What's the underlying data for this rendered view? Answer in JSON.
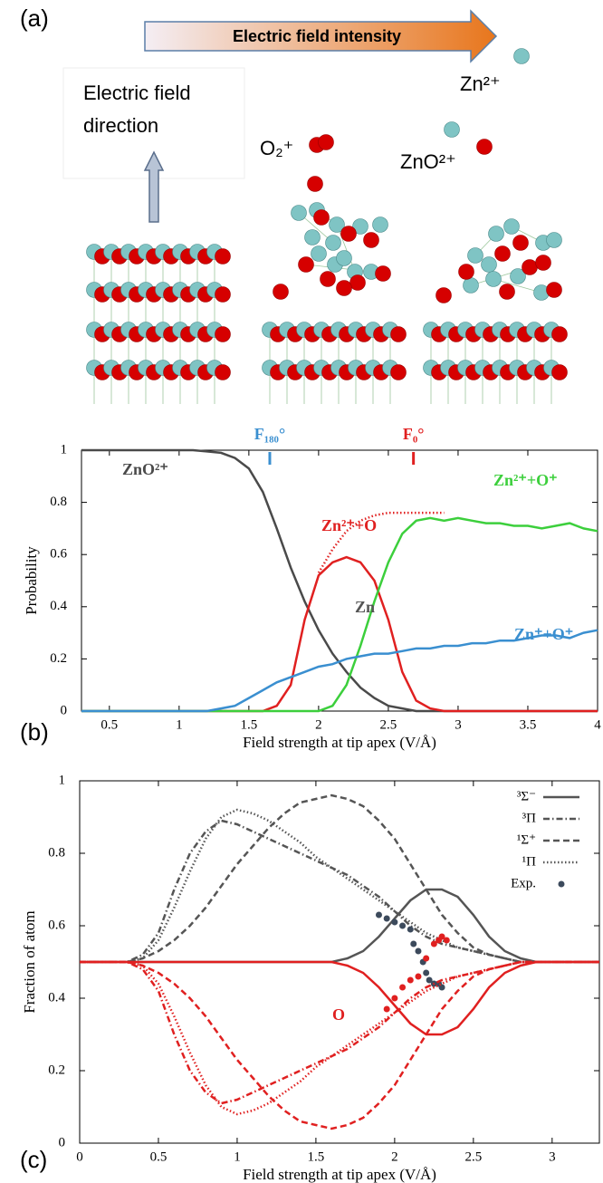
{
  "panel_labels": [
    "(a)",
    "(b)",
    "(c)"
  ],
  "illustration": {
    "arrow_label": "Electric field intensity",
    "direction_label": [
      "Electric field",
      "direction"
    ],
    "ion_labels": [
      "O₂⁺",
      "ZnO²⁺",
      "Zn²⁺"
    ]
  },
  "chart_data": [
    {
      "type": "line",
      "ylabel": "Probability",
      "xlabel": "Field strength at tip apex (V/Å)",
      "xlim": [
        0.3,
        4
      ],
      "xticks": [
        0.5,
        1,
        1.5,
        2,
        2.5,
        3,
        3.5,
        4
      ],
      "ylim": [
        0,
        1
      ],
      "yticks": [
        0,
        0.2,
        0.4,
        0.6,
        0.8,
        1
      ],
      "markers": [
        {
          "label": "F₁₈₀°",
          "x": 1.65,
          "color": "#3a8fd0"
        },
        {
          "label": "F₀°",
          "x": 2.68,
          "color": "#e02020"
        }
      ],
      "x": [
        0.3,
        0.4,
        0.5,
        0.6,
        0.7,
        0.8,
        0.9,
        1,
        1.1,
        1.2,
        1.3,
        1.4,
        1.5,
        1.6,
        1.7,
        1.8,
        1.9,
        2,
        2.1,
        2.2,
        2.3,
        2.4,
        2.5,
        2.6,
        2.7,
        2.8,
        2.9,
        3,
        3.1,
        3.2,
        3.3,
        3.4,
        3.5,
        3.6,
        3.7,
        3.8,
        3.9,
        4
      ],
      "series": [
        {
          "name": "ZnO²⁺",
          "color": "#4a4a4a",
          "dash": "solid",
          "values": [
            1,
            1,
            1,
            1,
            1,
            1,
            1,
            1,
            1,
            0.995,
            0.99,
            0.97,
            0.93,
            0.84,
            0.7,
            0.55,
            0.42,
            0.31,
            0.22,
            0.15,
            0.09,
            0.05,
            0.02,
            0.01,
            0,
            0,
            0,
            0,
            0,
            0,
            0,
            0,
            0,
            0,
            0,
            0,
            0,
            0
          ]
        },
        {
          "name": "Zn²⁺+O",
          "color": "#e02020",
          "dash": "solid",
          "values": [
            0,
            0,
            0,
            0,
            0,
            0,
            0,
            0,
            0,
            0,
            0,
            0,
            0,
            0,
            0.02,
            0.1,
            0.35,
            0.52,
            0.57,
            0.59,
            0.57,
            0.5,
            0.35,
            0.15,
            0.04,
            0.01,
            0,
            0,
            0,
            0,
            0,
            0,
            0,
            0,
            0,
            0,
            0,
            0
          ]
        },
        {
          "color": "#e02020",
          "dash": "dotted",
          "values": [
            null,
            null,
            null,
            null,
            null,
            null,
            null,
            null,
            null,
            null,
            null,
            null,
            null,
            null,
            null,
            null,
            null,
            0.53,
            0.62,
            0.69,
            0.73,
            0.75,
            0.76,
            0.76,
            0.76,
            0.76,
            0.76,
            null,
            null,
            null,
            null,
            null,
            null,
            null,
            null,
            null,
            null,
            null
          ]
        },
        {
          "name": "Zn²⁺+O⁺",
          "color": "#3ccf3c",
          "dash": "solid",
          "values": [
            0,
            0,
            0,
            0,
            0,
            0,
            0,
            0,
            0,
            0,
            0,
            0,
            0,
            0,
            0,
            0,
            0,
            0,
            0.02,
            0.1,
            0.25,
            0.42,
            0.57,
            0.68,
            0.73,
            0.74,
            0.73,
            0.74,
            0.73,
            0.72,
            0.72,
            0.71,
            0.71,
            0.7,
            0.71,
            0.72,
            0.7,
            0.69
          ]
        },
        {
          "name": "Zn⁺+O⁺",
          "color": "#3a8fd0",
          "dash": "solid",
          "values": [
            0,
            0,
            0,
            0,
            0,
            0,
            0,
            0,
            0,
            0,
            0.01,
            0.02,
            0.05,
            0.08,
            0.11,
            0.13,
            0.15,
            0.17,
            0.18,
            0.2,
            0.21,
            0.22,
            0.22,
            0.23,
            0.24,
            0.24,
            0.25,
            0.25,
            0.26,
            0.26,
            0.27,
            0.27,
            0.28,
            0.29,
            0.29,
            0.28,
            0.3,
            0.31
          ]
        }
      ]
    },
    {
      "type": "line",
      "ylabel": "Fraction of atom",
      "xlabel": "Field strength at tip apex (V/Å)",
      "xlim": [
        0,
        3.3
      ],
      "xticks": [
        0,
        0.5,
        1,
        1.5,
        2,
        2.5,
        3
      ],
      "ylim": [
        0,
        1
      ],
      "yticks": [
        0,
        0.2,
        0.4,
        0.6,
        0.8,
        1
      ],
      "legend": "upper right",
      "annotations": [
        "Zn",
        "O"
      ],
      "x": [
        0,
        0.1,
        0.2,
        0.3,
        0.4,
        0.5,
        0.6,
        0.7,
        0.8,
        0.9,
        1,
        1.1,
        1.2,
        1.3,
        1.4,
        1.5,
        1.6,
        1.7,
        1.8,
        1.9,
        2,
        2.1,
        2.2,
        2.3,
        2.4,
        2.5,
        2.6,
        2.7,
        2.8,
        2.9,
        3,
        3.1,
        3.2,
        3.3
      ],
      "series": [
        {
          "name": "³Σ⁻",
          "color": "#555555",
          "dash": "solid",
          "values": [
            0.5,
            0.5,
            0.5,
            0.5,
            0.5,
            0.5,
            0.5,
            0.5,
            0.5,
            0.5,
            0.5,
            0.5,
            0.5,
            0.5,
            0.5,
            0.5,
            0.5,
            0.51,
            0.53,
            0.57,
            0.62,
            0.67,
            0.7,
            0.7,
            0.68,
            0.63,
            0.57,
            0.53,
            0.51,
            0.5,
            0.5,
            0.5,
            0.5,
            0.5
          ]
        },
        {
          "name": "³Π",
          "color": "#555555",
          "dash": "dashdot",
          "values": [
            0.5,
            0.5,
            0.5,
            0.5,
            0.52,
            0.58,
            0.7,
            0.8,
            0.86,
            0.89,
            0.88,
            0.86,
            0.84,
            0.82,
            0.8,
            0.78,
            0.76,
            0.74,
            0.71,
            0.68,
            0.64,
            0.6,
            0.57,
            0.55,
            0.54,
            0.53,
            0.52,
            0.51,
            0.5,
            0.5,
            0.5,
            0.5,
            0.5,
            0.5
          ]
        },
        {
          "name": "¹Σ⁺",
          "color": "#555555",
          "dash": "dashed",
          "values": [
            0.5,
            0.5,
            0.5,
            0.5,
            0.51,
            0.53,
            0.56,
            0.6,
            0.65,
            0.71,
            0.77,
            0.82,
            0.87,
            0.91,
            0.94,
            0.95,
            0.96,
            0.95,
            0.93,
            0.89,
            0.84,
            0.77,
            0.7,
            0.63,
            0.58,
            0.54,
            0.52,
            0.51,
            0.5,
            0.5,
            0.5,
            0.5,
            0.5,
            0.5
          ]
        },
        {
          "name": "¹Π",
          "color": "#555555",
          "dash": "dotted",
          "values": [
            0.5,
            0.5,
            0.5,
            0.5,
            0.51,
            0.56,
            0.65,
            0.75,
            0.84,
            0.9,
            0.92,
            0.91,
            0.89,
            0.86,
            0.83,
            0.79,
            0.76,
            0.73,
            0.7,
            0.67,
            0.64,
            0.61,
            0.58,
            0.56,
            0.54,
            0.53,
            0.52,
            0.51,
            0.5,
            0.5,
            0.5,
            0.5,
            0.5,
            0.5
          ]
        },
        {
          "name": "Exp.",
          "color": "#3c4a5c",
          "mode": "scatter",
          "x": [
            1.9,
            1.95,
            2,
            2.05,
            2.1,
            2.12,
            2.15,
            2.18,
            2.2,
            2.22,
            2.25,
            2.28,
            2.3
          ],
          "values": [
            0.63,
            0.62,
            0.61,
            0.6,
            0.59,
            0.55,
            0.53,
            0.5,
            0.47,
            0.45,
            0.44,
            0.44,
            0.43
          ]
        },
        {
          "color": "#e02020",
          "dash": "solid",
          "values": [
            0.5,
            0.5,
            0.5,
            0.5,
            0.5,
            0.5,
            0.5,
            0.5,
            0.5,
            0.5,
            0.5,
            0.5,
            0.5,
            0.5,
            0.5,
            0.5,
            0.5,
            0.49,
            0.47,
            0.43,
            0.38,
            0.33,
            0.3,
            0.3,
            0.32,
            0.37,
            0.43,
            0.47,
            0.49,
            0.5,
            0.5,
            0.5,
            0.5,
            0.5
          ]
        },
        {
          "color": "#e02020",
          "dash": "dashdot",
          "values": [
            0.5,
            0.5,
            0.5,
            0.5,
            0.48,
            0.42,
            0.3,
            0.2,
            0.14,
            0.11,
            0.12,
            0.14,
            0.16,
            0.18,
            0.2,
            0.22,
            0.24,
            0.26,
            0.29,
            0.32,
            0.36,
            0.4,
            0.43,
            0.45,
            0.46,
            0.47,
            0.48,
            0.49,
            0.5,
            0.5,
            0.5,
            0.5,
            0.5,
            0.5
          ]
        },
        {
          "color": "#e02020",
          "dash": "dashed",
          "values": [
            0.5,
            0.5,
            0.5,
            0.5,
            0.49,
            0.47,
            0.44,
            0.4,
            0.35,
            0.29,
            0.23,
            0.18,
            0.13,
            0.09,
            0.06,
            0.05,
            0.04,
            0.05,
            0.07,
            0.11,
            0.16,
            0.23,
            0.3,
            0.37,
            0.42,
            0.46,
            0.48,
            0.49,
            0.5,
            0.5,
            0.5,
            0.5,
            0.5,
            0.5
          ]
        },
        {
          "color": "#e02020",
          "dash": "dotted",
          "values": [
            0.5,
            0.5,
            0.5,
            0.5,
            0.49,
            0.44,
            0.35,
            0.25,
            0.16,
            0.1,
            0.08,
            0.09,
            0.11,
            0.14,
            0.17,
            0.21,
            0.24,
            0.27,
            0.3,
            0.33,
            0.36,
            0.39,
            0.42,
            0.44,
            0.46,
            0.47,
            0.48,
            0.49,
            0.5,
            0.5,
            0.5,
            0.5,
            0.5,
            0.5
          ]
        },
        {
          "color": "#e02020",
          "mode": "scatter",
          "x": [
            1.95,
            2,
            2.05,
            2.1,
            2.15,
            2.2,
            2.25,
            2.28,
            2.3,
            2.33
          ],
          "values": [
            0.37,
            0.4,
            0.43,
            0.45,
            0.46,
            0.51,
            0.55,
            0.56,
            0.57,
            0.56
          ]
        }
      ]
    }
  ]
}
